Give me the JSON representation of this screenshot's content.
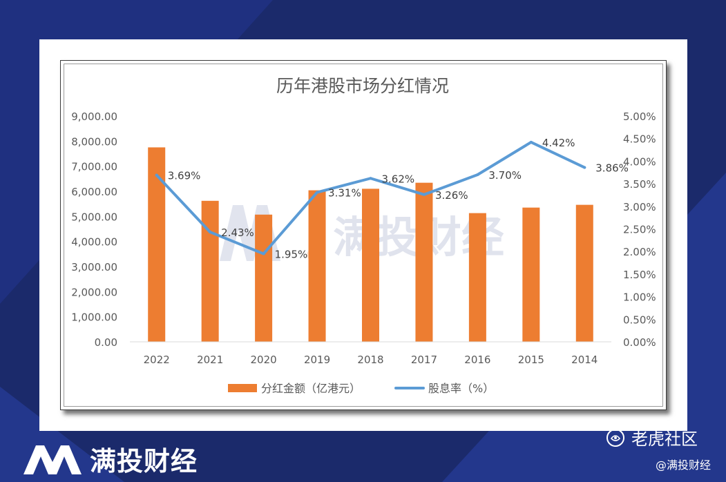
{
  "brand": {
    "name": "满投财经"
  },
  "watermark": {
    "text": "满投财经"
  },
  "credits": {
    "community": "老虎社区",
    "handle": "@满投财经"
  },
  "chart_data": {
    "type": "bar",
    "title": "历年港股市场分红情况",
    "categories": [
      "2022",
      "2021",
      "2020",
      "2019",
      "2018",
      "2017",
      "2016",
      "2015",
      "2014"
    ],
    "series": [
      {
        "name": "分红金额（亿港元）",
        "type": "bar",
        "axis": "left",
        "color": "#ed7d31",
        "values": [
          7750,
          5620,
          5070,
          6040,
          6100,
          6340,
          5130,
          5350,
          5460
        ]
      },
      {
        "name": "股息率（%）",
        "type": "line",
        "axis": "right",
        "color": "#5b9bd5",
        "values": [
          3.69,
          2.43,
          1.95,
          3.31,
          3.62,
          3.26,
          3.7,
          4.42,
          3.86
        ],
        "labels": [
          "3.69%",
          "2.43%",
          "1.95%",
          "3.31%",
          "3.62%",
          "3.26%",
          "3.70%",
          "4.42%",
          "3.86%"
        ]
      }
    ],
    "y_left": {
      "range": [
        0,
        9000
      ],
      "ticks": [
        "0.00",
        "1,000.00",
        "2,000.00",
        "3,000.00",
        "4,000.00",
        "5,000.00",
        "6,000.00",
        "7,000.00",
        "8,000.00",
        "9,000.00"
      ]
    },
    "y_right": {
      "range": [
        0,
        5
      ],
      "ticks": [
        "0.00%",
        "0.50%",
        "1.00%",
        "1.50%",
        "2.00%",
        "2.50%",
        "3.00%",
        "3.50%",
        "4.00%",
        "4.50%",
        "5.00%"
      ]
    },
    "legend": "bottom",
    "grid": false
  }
}
